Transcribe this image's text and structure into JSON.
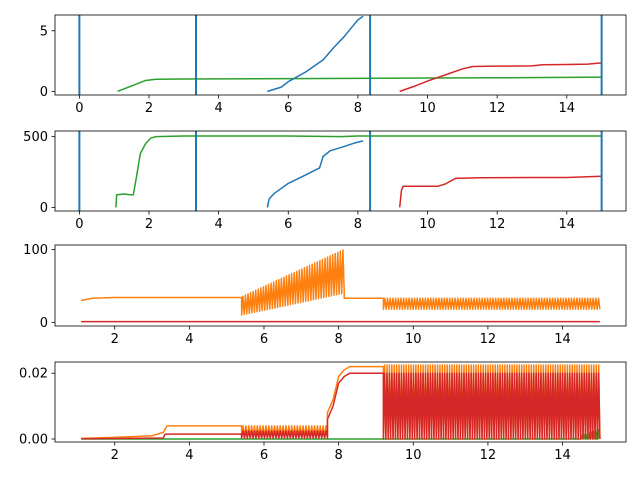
{
  "colors": {
    "blue": "#1f77b4",
    "orange": "#ff7f0e",
    "green": "#2ca02c",
    "red": "#d62728"
  },
  "chart_data": [
    {
      "type": "line",
      "xlim": [
        -0.7,
        15.7
      ],
      "ylim": [
        -0.3,
        6.3
      ],
      "xticks": [
        0,
        2,
        4,
        6,
        8,
        10,
        12,
        14
      ],
      "yticks": [
        0,
        5
      ],
      "grid": false,
      "vlines": [
        {
          "x": 0,
          "color": "#1f77b4"
        },
        {
          "x": 3.35,
          "color": "#1f77b4"
        },
        {
          "x": 8.35,
          "color": "#1f77b4"
        },
        {
          "x": 15.0,
          "color": "#1f77b4"
        }
      ],
      "series": [
        {
          "color": "#2ca02c",
          "x": [
            1.1,
            1.5,
            1.9,
            2.2,
            3.0,
            4.0,
            6.0,
            8.0,
            10.0,
            12.0,
            14.0,
            15.0
          ],
          "y": [
            0.0,
            0.45,
            0.9,
            1.0,
            1.02,
            1.03,
            1.05,
            1.07,
            1.1,
            1.12,
            1.15,
            1.17
          ]
        },
        {
          "color": "#1f77b4",
          "x": [
            5.4,
            5.8,
            6.0,
            6.5,
            7.0,
            7.3,
            7.6,
            7.8,
            8.0,
            8.15
          ],
          "y": [
            0.0,
            0.35,
            0.8,
            1.6,
            2.6,
            3.6,
            4.5,
            5.2,
            5.9,
            6.2
          ]
        },
        {
          "color": "#d62728",
          "x": [
            9.2,
            9.6,
            10.0,
            10.5,
            11.0,
            11.3,
            12.0,
            13.0,
            13.3,
            14.0,
            14.6,
            15.0
          ],
          "y": [
            0.0,
            0.4,
            0.85,
            1.35,
            1.85,
            2.05,
            2.08,
            2.1,
            2.2,
            2.22,
            2.25,
            2.35
          ]
        }
      ]
    },
    {
      "type": "line",
      "xlim": [
        -0.7,
        15.7
      ],
      "ylim": [
        -25,
        540
      ],
      "xticks": [
        0,
        2,
        4,
        6,
        8,
        10,
        12,
        14
      ],
      "yticks": [
        0,
        500
      ],
      "grid": false,
      "vlines": [
        {
          "x": 0,
          "color": "#1f77b4"
        },
        {
          "x": 3.35,
          "color": "#1f77b4"
        },
        {
          "x": 8.35,
          "color": "#1f77b4"
        },
        {
          "x": 15.0,
          "color": "#1f77b4"
        }
      ],
      "series": [
        {
          "color": "#2ca02c",
          "x": [
            1.05,
            1.07,
            1.3,
            1.45,
            1.55,
            1.65,
            1.75,
            1.9,
            2.05,
            2.2,
            3.0,
            6.0,
            7.5,
            8.0,
            10.0,
            15.0
          ],
          "y": [
            0,
            90,
            95,
            90,
            90,
            230,
            380,
            450,
            490,
            500,
            505,
            505,
            500,
            505,
            505,
            505
          ]
        },
        {
          "color": "#1f77b4",
          "x": [
            5.4,
            5.45,
            5.6,
            6.0,
            6.5,
            6.9,
            7.0,
            7.2,
            7.6,
            7.9,
            8.15
          ],
          "y": [
            0,
            60,
            100,
            170,
            230,
            280,
            360,
            400,
            430,
            455,
            470
          ]
        },
        {
          "color": "#d62728",
          "x": [
            9.2,
            9.25,
            9.3,
            10.3,
            10.5,
            10.8,
            11.5,
            13.0,
            14.0,
            15.0
          ],
          "y": [
            0,
            120,
            150,
            150,
            165,
            205,
            210,
            212,
            212,
            220
          ]
        }
      ]
    },
    {
      "type": "line",
      "xlim": [
        0.4,
        15.7
      ],
      "ylim": [
        -5,
        106
      ],
      "xticks": [
        2,
        4,
        6,
        8,
        10,
        12,
        14
      ],
      "yticks": [
        0,
        100
      ],
      "grid": false,
      "series": [
        {
          "color": "#d62728",
          "x": [
            1.1,
            15.0
          ],
          "y": [
            1,
            1
          ]
        },
        {
          "color": "#ff7f0e",
          "segments": [
            {
              "kind": "steps",
              "x": [
                1.1,
                1.3,
                1.4,
                2.0,
                5.3,
                5.4
              ],
              "y": [
                30,
                32,
                33,
                34,
                34,
                34
              ]
            },
            {
              "kind": "osc",
              "x0": 5.4,
              "x1": 8.15,
              "n": 40,
              "low_start": 10,
              "low_end": 40,
              "high_start": 35,
              "high_end": 100
            },
            {
              "kind": "steps",
              "x": [
                8.15,
                9.2
              ],
              "y": [
                33,
                33
              ]
            },
            {
              "kind": "osc",
              "x0": 9.2,
              "x1": 15.0,
              "n": 80,
              "low_start": 18,
              "low_end": 18,
              "high_start": 33,
              "high_end": 33
            }
          ]
        }
      ]
    },
    {
      "type": "line",
      "xlim": [
        0.4,
        15.7
      ],
      "ylim": [
        -0.0009,
        0.0234
      ],
      "xticks": [
        2,
        4,
        6,
        8,
        10,
        12,
        14
      ],
      "yticks": [
        0.0,
        0.02
      ],
      "ytick_labels": [
        "0.00",
        "0.02"
      ],
      "grid": false,
      "series": [
        {
          "color": "#2ca02c",
          "segments": [
            {
              "kind": "steps",
              "x": [
                1.1,
                14.5
              ],
              "y": [
                0.0,
                0.0
              ]
            },
            {
              "kind": "osc",
              "x0": 14.5,
              "x1": 15.0,
              "n": 10,
              "low_start": 0.0,
              "low_end": 0.0,
              "high_start": 0.001,
              "high_end": 0.003
            }
          ]
        },
        {
          "color": "#ff7f0e",
          "segments": [
            {
              "kind": "steps",
              "x": [
                1.1,
                2.0,
                3.0,
                3.3,
                3.4,
                5.4
              ],
              "y": [
                0.0002,
                0.0005,
                0.001,
                0.002,
                0.004,
                0.004
              ]
            },
            {
              "kind": "osc",
              "x0": 5.4,
              "x1": 7.7,
              "n": 30,
              "low_start": 0.0005,
              "low_end": 0.0005,
              "high_start": 0.004,
              "high_end": 0.004
            },
            {
              "kind": "steps",
              "x": [
                7.7,
                7.85,
                8.0,
                8.15,
                8.3,
                9.2
              ],
              "y": [
                0.008,
                0.012,
                0.019,
                0.021,
                0.022,
                0.022
              ]
            },
            {
              "kind": "osc",
              "x0": 9.2,
              "x1": 15.0,
              "n": 90,
              "low_start": 0.0,
              "low_end": 0.0,
              "high_start": 0.0225,
              "high_end": 0.0225
            }
          ]
        },
        {
          "color": "#d62728",
          "segments": [
            {
              "kind": "steps",
              "x": [
                1.1,
                3.3,
                3.35,
                5.4
              ],
              "y": [
                0.0001,
                0.0003,
                0.0015,
                0.0015
              ]
            },
            {
              "kind": "osc",
              "x0": 5.4,
              "x1": 7.7,
              "n": 30,
              "low_start": 0.0003,
              "low_end": 0.0003,
              "high_start": 0.0025,
              "high_end": 0.0025
            },
            {
              "kind": "steps",
              "x": [
                7.7,
                7.85,
                8.0,
                8.15,
                8.3,
                9.2
              ],
              "y": [
                0.006,
                0.01,
                0.017,
                0.019,
                0.02,
                0.02
              ]
            },
            {
              "kind": "osc",
              "x0": 9.2,
              "x1": 15.0,
              "n": 90,
              "low_start": 0.0,
              "low_end": 0.0,
              "high_start": 0.02,
              "high_end": 0.02
            }
          ]
        }
      ]
    }
  ]
}
